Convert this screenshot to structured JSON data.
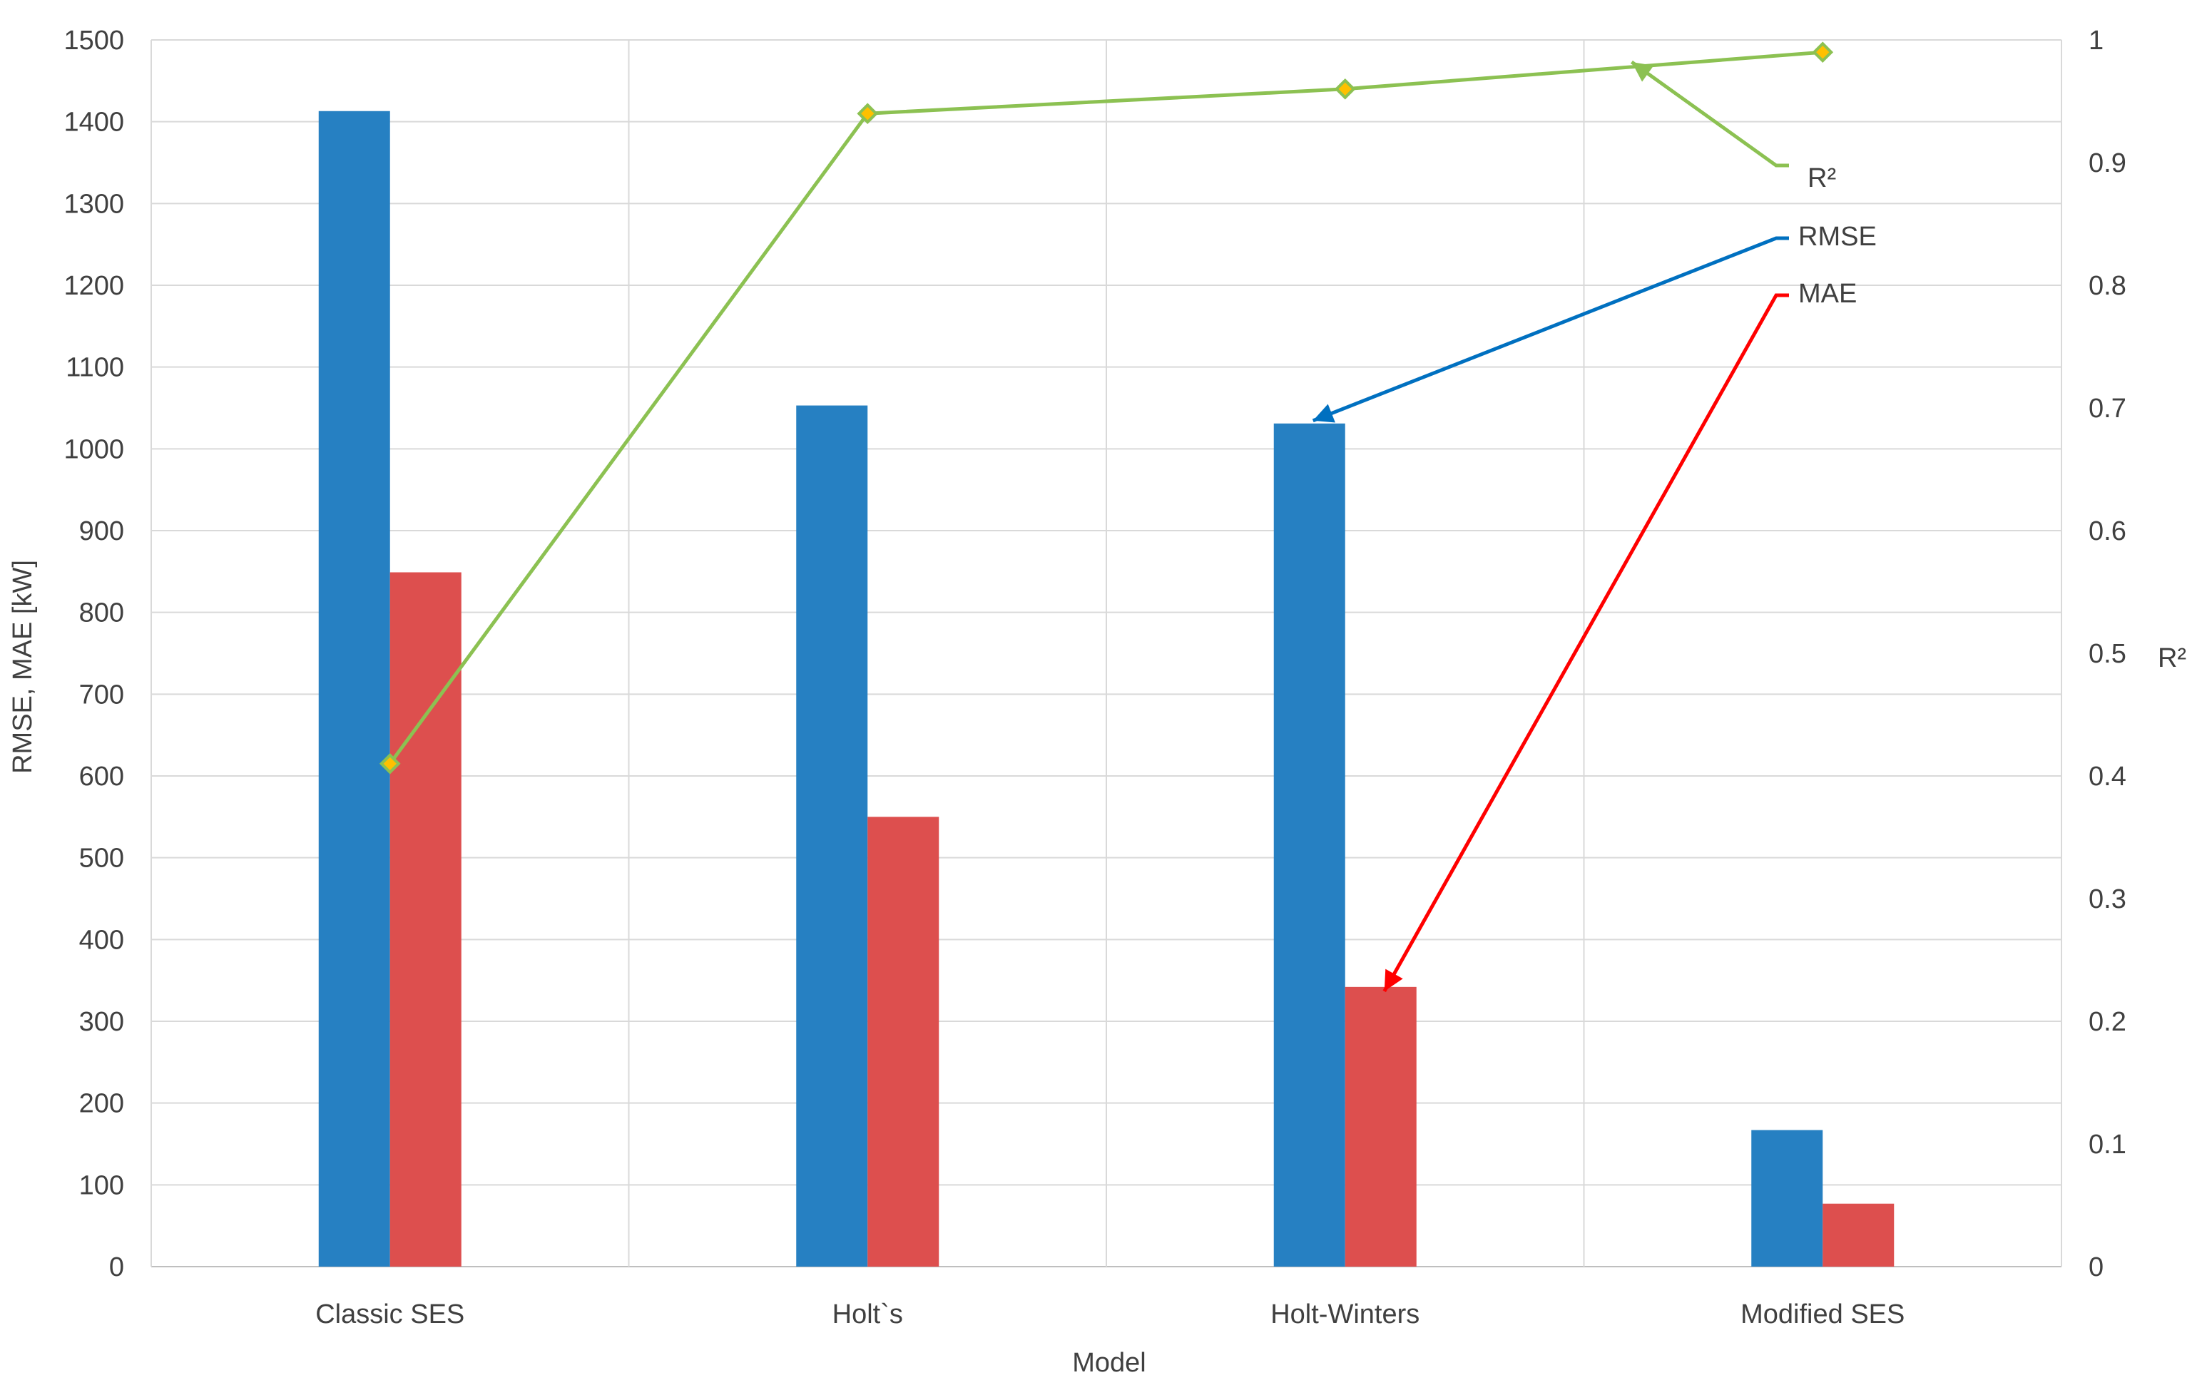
{
  "chart_data": {
    "type": "bar",
    "title": "",
    "xlabel": "Model",
    "ylabel": "RMSE, MAE [kW]",
    "y2label": "R²",
    "categories": [
      "Classic SES",
      "Holt`s",
      "Holt-Winters",
      "Modified SES"
    ],
    "ylim": [
      0,
      1500
    ],
    "y2lim": [
      0,
      1
    ],
    "yticks": [
      "0",
      "100",
      "200",
      "300",
      "400",
      "500",
      "600",
      "700",
      "800",
      "900",
      "1000",
      "1100",
      "1200",
      "1300",
      "1400",
      "1500"
    ],
    "y2ticks": [
      "0",
      "0.1",
      "0.2",
      "0.3",
      "0.4",
      "0.5",
      "0.6",
      "0.7",
      "0.8",
      "0.9",
      "1"
    ],
    "grid": true,
    "series": [
      {
        "name": "RMSE",
        "type": "bar",
        "axis": "left",
        "color": "#2680c2",
        "values": [
          1413,
          1053,
          1031,
          167
        ]
      },
      {
        "name": "MAE",
        "type": "bar",
        "axis": "left",
        "color": "#dd4f4e",
        "values": [
          849,
          550,
          342,
          77
        ]
      },
      {
        "name": "R²",
        "type": "line",
        "axis": "right",
        "color": "#8cc152",
        "marker_color": "#ffc000",
        "values": [
          0.41,
          0.94,
          0.96,
          0.99
        ]
      }
    ],
    "annotations": [
      {
        "text": "R²",
        "series": "R²",
        "color": "#8cc152"
      },
      {
        "text": "RMSE",
        "series": "RMSE",
        "color": "#0070c0"
      },
      {
        "text": "MAE",
        "series": "MAE",
        "color": "#ff0000"
      }
    ]
  }
}
